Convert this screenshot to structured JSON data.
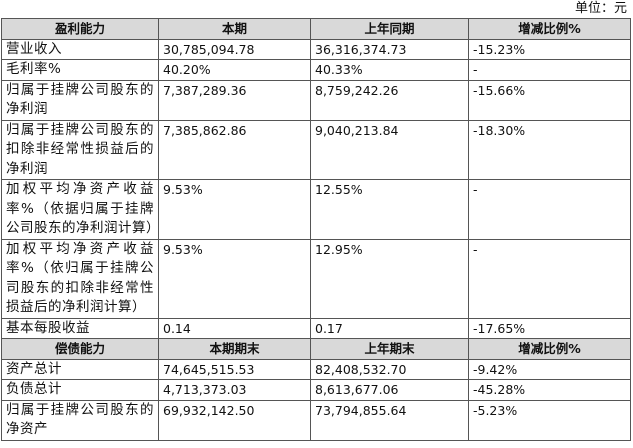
{
  "unit": "单位：元",
  "sections": [
    {
      "header": [
        "盈利能力",
        "本期",
        "上年同期",
        "增减比例%"
      ],
      "rows": [
        [
          "营业收入",
          "30,785,094.78",
          "36,316,374.73",
          "-15.23%"
        ],
        [
          "毛利率%",
          "40.20%",
          "40.33%",
          "-"
        ],
        [
          "归属于挂牌公司股东的净利润",
          "7,387,289.36",
          "8,759,242.26",
          "-15.66%"
        ],
        [
          "归属于挂牌公司股东的扣除非经常性损益后的净利润",
          "7,385,862.86",
          "9,040,213.84",
          "-18.30%"
        ],
        [
          "加权平均净资产收益率%（依据归属于挂牌公司股东的净利润计算）",
          "9.53%",
          "12.55%",
          "-"
        ],
        [
          "加权平均净资产收益率%（依归属于挂牌公司股东的扣除非经常性损益后的净利润计算）",
          "9.53%",
          "12.95%",
          "-"
        ],
        [
          "基本每股收益",
          "0.14",
          "0.17",
          "-17.65%"
        ]
      ]
    },
    {
      "header": [
        "偿债能力",
        "本期期末",
        "上年期末",
        "增减比例%"
      ],
      "rows": [
        [
          "资产总计",
          "74,645,515.53",
          "82,408,532.70",
          "-9.42%"
        ],
        [
          "负债总计",
          "4,713,373.03",
          "8,613,677.06",
          "-45.28%"
        ],
        [
          "归属于挂牌公司股东的净资产",
          "69,932,142.50",
          "73,794,855.64",
          "-5.23%"
        ]
      ]
    }
  ]
}
